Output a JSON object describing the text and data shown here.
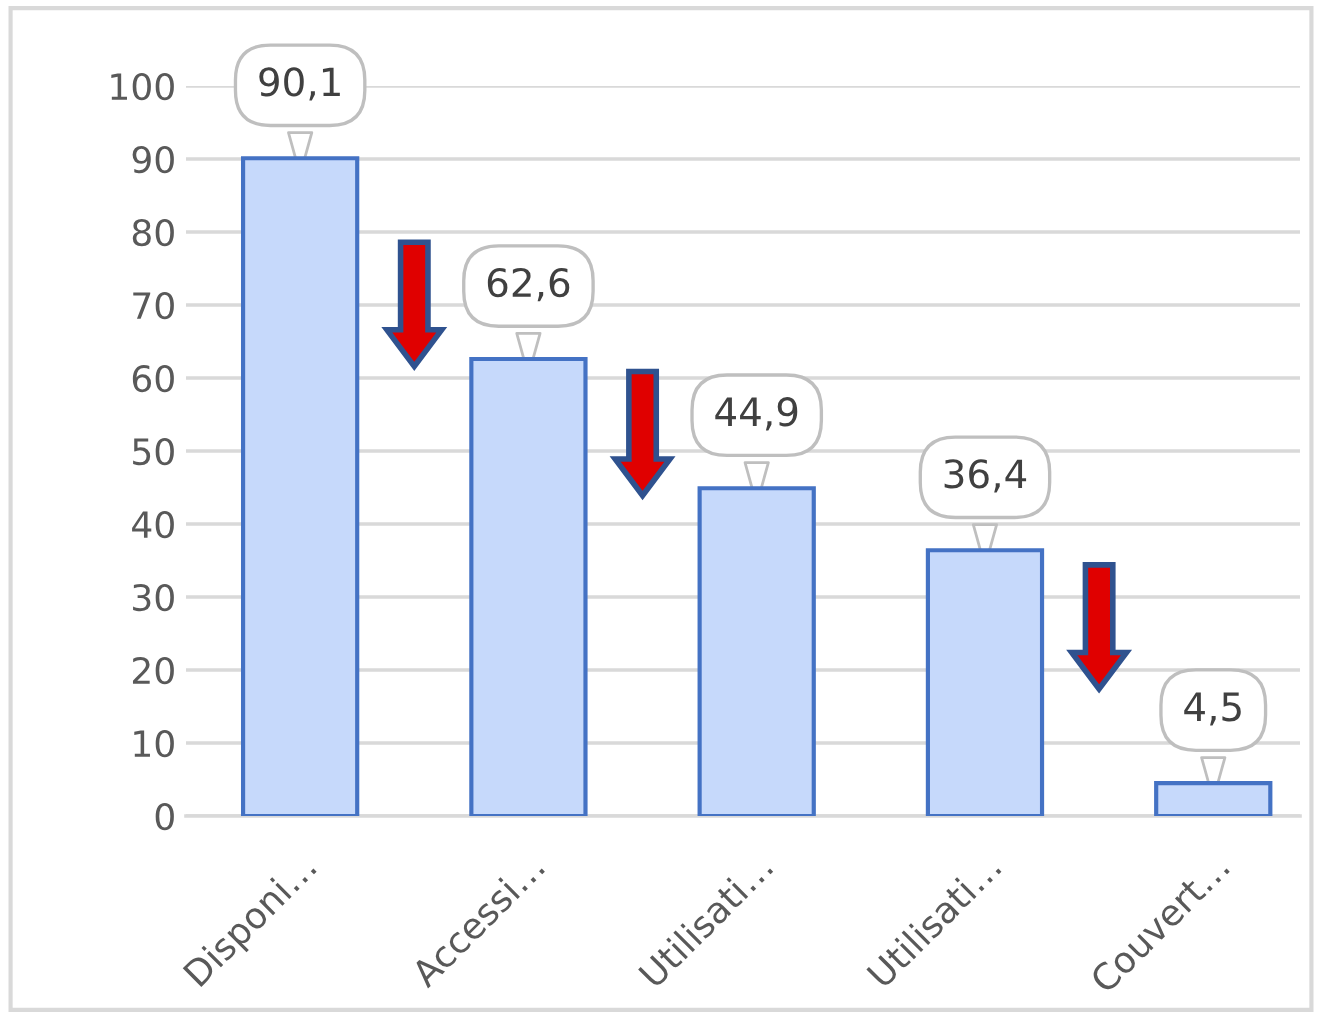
{
  "chart_data": {
    "type": "bar",
    "categories": [
      "Disponi…",
      "Accessi…",
      "Utilisati…",
      "Utilisati…",
      "Couvert…"
    ],
    "values": [
      90.1,
      62.6,
      44.9,
      36.4,
      4.5
    ],
    "value_labels": [
      "90,1",
      "62,6",
      "44,9",
      "36,4",
      "4,5"
    ],
    "color": "#c6d9fb",
    "ylim": [
      0,
      100
    ],
    "yticks": [
      0,
      10,
      20,
      30,
      40,
      50,
      60,
      70,
      80,
      90,
      100
    ],
    "grid": "y"
  }
}
